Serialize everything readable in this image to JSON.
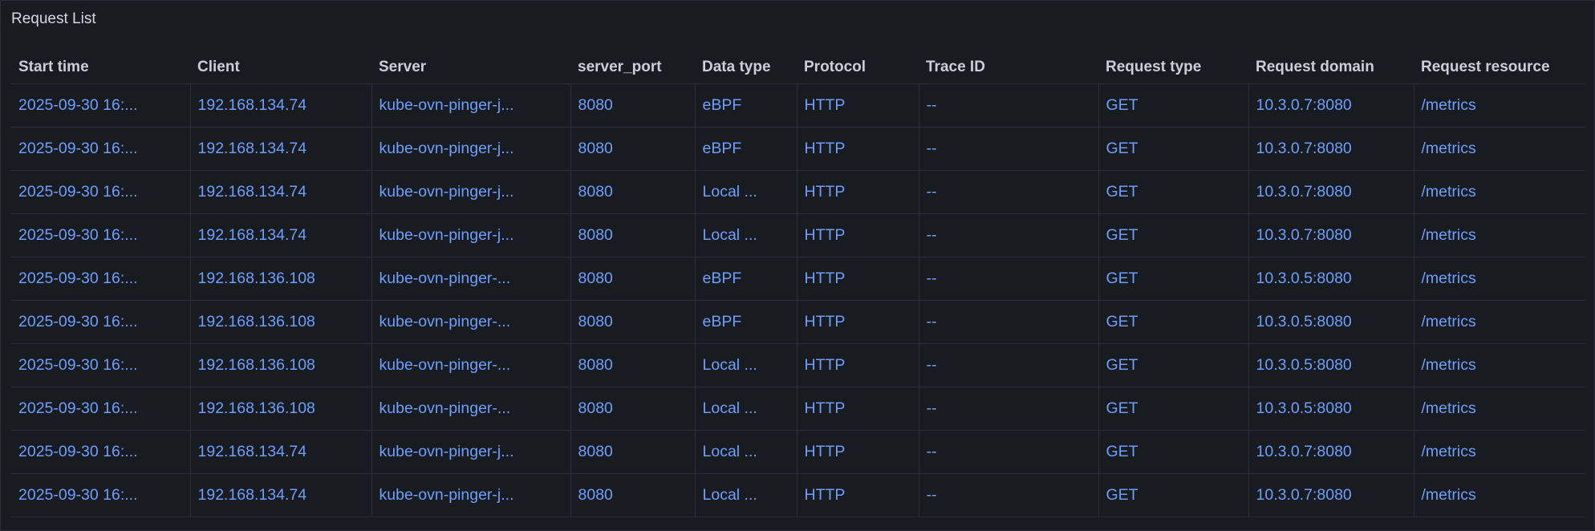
{
  "panel": {
    "title": "Request List"
  },
  "columns": [
    "Start time",
    "Client",
    "Server",
    "server_port",
    "Data type",
    "Protocol",
    "Trace ID",
    "Request type",
    "Request domain",
    "Request resource"
  ],
  "rows": [
    [
      "2025-09-30 16:...",
      "192.168.134.74",
      "kube-ovn-pinger-j...",
      "8080",
      "eBPF",
      "HTTP",
      "--",
      "GET",
      "10.3.0.7:8080",
      "/metrics"
    ],
    [
      "2025-09-30 16:...",
      "192.168.134.74",
      "kube-ovn-pinger-j...",
      "8080",
      "eBPF",
      "HTTP",
      "--",
      "GET",
      "10.3.0.7:8080",
      "/metrics"
    ],
    [
      "2025-09-30 16:...",
      "192.168.134.74",
      "kube-ovn-pinger-j...",
      "8080",
      "Local ...",
      "HTTP",
      "--",
      "GET",
      "10.3.0.7:8080",
      "/metrics"
    ],
    [
      "2025-09-30 16:...",
      "192.168.134.74",
      "kube-ovn-pinger-j...",
      "8080",
      "Local ...",
      "HTTP",
      "--",
      "GET",
      "10.3.0.7:8080",
      "/metrics"
    ],
    [
      "2025-09-30 16:...",
      "192.168.136.108",
      "kube-ovn-pinger-...",
      "8080",
      "eBPF",
      "HTTP",
      "--",
      "GET",
      "10.3.0.5:8080",
      "/metrics"
    ],
    [
      "2025-09-30 16:...",
      "192.168.136.108",
      "kube-ovn-pinger-...",
      "8080",
      "eBPF",
      "HTTP",
      "--",
      "GET",
      "10.3.0.5:8080",
      "/metrics"
    ],
    [
      "2025-09-30 16:...",
      "192.168.136.108",
      "kube-ovn-pinger-...",
      "8080",
      "Local ...",
      "HTTP",
      "--",
      "GET",
      "10.3.0.5:8080",
      "/metrics"
    ],
    [
      "2025-09-30 16:...",
      "192.168.136.108",
      "kube-ovn-pinger-...",
      "8080",
      "Local ...",
      "HTTP",
      "--",
      "GET",
      "10.3.0.5:8080",
      "/metrics"
    ],
    [
      "2025-09-30 16:...",
      "192.168.134.74",
      "kube-ovn-pinger-j...",
      "8080",
      "Local ...",
      "HTTP",
      "--",
      "GET",
      "10.3.0.7:8080",
      "/metrics"
    ],
    [
      "2025-09-30 16:...",
      "192.168.134.74",
      "kube-ovn-pinger-j...",
      "8080",
      "Local ...",
      "HTTP",
      "--",
      "GET",
      "10.3.0.7:8080",
      "/metrics"
    ]
  ],
  "colors": {
    "background": "#181b1f",
    "link": "#6e9fff",
    "header_text": "#ccccdc",
    "border": "#2c2f36"
  }
}
